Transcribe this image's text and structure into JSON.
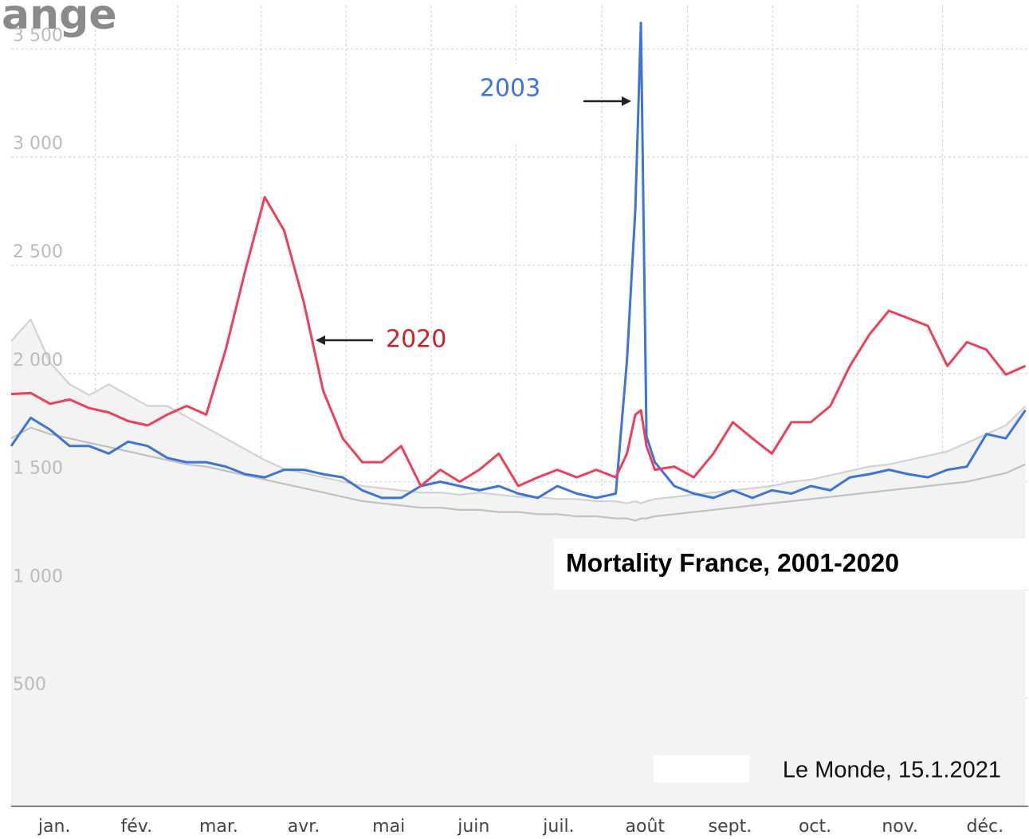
{
  "chart_data": {
    "type": "line",
    "header_fragment": "ange",
    "title": "Mortality France, 2001-2020",
    "source": "Le Monde, 15.1.2021",
    "x": [
      0,
      7,
      14,
      21,
      28,
      35,
      42,
      49,
      56,
      63,
      70,
      77,
      84,
      91,
      98,
      105,
      112,
      119,
      126,
      133,
      140,
      147,
      154,
      161,
      168,
      175,
      182,
      189,
      196,
      203,
      210,
      217,
      221,
      224,
      226,
      228,
      231,
      238,
      245,
      252,
      259,
      266,
      273,
      280,
      287,
      294,
      301,
      308,
      315,
      322,
      329,
      336,
      343,
      350,
      357,
      364
    ],
    "xlim": [
      0,
      365
    ],
    "xticks": [
      {
        "value": 15.5,
        "label": "jan."
      },
      {
        "value": 45,
        "label": "fév."
      },
      {
        "value": 74.5,
        "label": "mar."
      },
      {
        "value": 105,
        "label": "avr."
      },
      {
        "value": 135.5,
        "label": "mai"
      },
      {
        "value": 166,
        "label": "juin"
      },
      {
        "value": 196.5,
        "label": "juil."
      },
      {
        "value": 227.5,
        "label": "août"
      },
      {
        "value": 258,
        "label": "sept."
      },
      {
        "value": 288.5,
        "label": "oct."
      },
      {
        "value": 319,
        "label": "nov."
      },
      {
        "value": 349.5,
        "label": "déc."
      }
    ],
    "ylim": [
      0,
      3700
    ],
    "yticks": [
      500,
      {
        "value": 1000,
        "label": "1 000"
      },
      {
        "value": 1500,
        "label": "1 500"
      },
      {
        "value": 2000,
        "label": "2 000"
      },
      {
        "value": 2500,
        "label": "2 500"
      },
      {
        "value": 3000,
        "label": "3 000"
      },
      {
        "value": 3500,
        "label": "3 500"
      }
    ],
    "grid": true,
    "series": [
      {
        "color": "#c8c8c8",
        "values": [
          2150,
          2250,
          2050,
          1950,
          1900,
          1950,
          1900,
          1850,
          1850,
          1800,
          1750,
          1700,
          1650,
          1600,
          1560,
          1540,
          1520,
          1500,
          1480,
          1470,
          1460,
          1450,
          1450,
          1440,
          1450,
          1440,
          1430,
          1430,
          1420,
          1420,
          1410,
          1410,
          1400,
          1410,
          1400,
          1410,
          1420,
          1430,
          1440,
          1450,
          1460,
          1470,
          1480,
          1500,
          1510,
          1530,
          1550,
          1570,
          1580,
          1600,
          1620,
          1640,
          1680,
          1720,
          1760,
          1850
        ]
      },
      {
        "color": "#b4b4b4",
        "values": [
          1700,
          1750,
          1720,
          1700,
          1680,
          1660,
          1640,
          1620,
          1600,
          1580,
          1570,
          1550,
          1530,
          1510,
          1490,
          1470,
          1450,
          1430,
          1410,
          1400,
          1390,
          1380,
          1380,
          1370,
          1370,
          1360,
          1360,
          1350,
          1350,
          1340,
          1340,
          1330,
          1330,
          1320,
          1330,
          1330,
          1340,
          1350,
          1360,
          1370,
          1380,
          1390,
          1400,
          1410,
          1420,
          1430,
          1440,
          1450,
          1460,
          1470,
          1480,
          1490,
          1500,
          1520,
          1540,
          1580
        ]
      },
      {
        "name": "2003",
        "color": "#3d74d6",
        "values": [
          1665,
          1795,
          1740,
          1665,
          1665,
          1630,
          1685,
          1665,
          1610,
          1590,
          1590,
          1570,
          1535,
          1520,
          1555,
          1555,
          1535,
          1520,
          1460,
          1425,
          1425,
          1480,
          1500,
          1480,
          1460,
          1480,
          1445,
          1425,
          1480,
          1445,
          1425,
          1445,
          2060,
          2760,
          3620,
          1710,
          1590,
          1480,
          1445,
          1425,
          1460,
          1425,
          1460,
          1445,
          1480,
          1460,
          1520,
          1535,
          1555,
          1535,
          1520,
          1555,
          1570,
          1720,
          1700,
          1830
        ]
      },
      {
        "name": "2020",
        "color": "#ec4059",
        "values": [
          1905,
          1910,
          1860,
          1880,
          1840,
          1820,
          1780,
          1760,
          1810,
          1850,
          1810,
          2110,
          2475,
          2815,
          2660,
          2330,
          1920,
          1700,
          1590,
          1590,
          1665,
          1480,
          1555,
          1500,
          1555,
          1630,
          1480,
          1520,
          1555,
          1520,
          1555,
          1520,
          1630,
          1810,
          1830,
          1665,
          1555,
          1570,
          1520,
          1630,
          1775,
          1700,
          1630,
          1775,
          1775,
          1850,
          2035,
          2180,
          2290,
          2255,
          2220,
          2035,
          2145,
          2110,
          1995,
          2035
        ]
      }
    ]
  }
}
